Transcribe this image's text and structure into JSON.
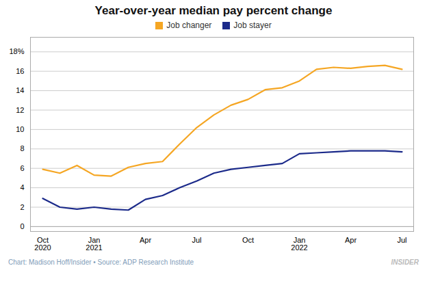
{
  "chart_data": {
    "type": "line",
    "title": "Year-over-year median pay percent change",
    "categories": [
      "Oct\n2020",
      null,
      null,
      "Jan\n2021",
      null,
      null,
      "Apr",
      null,
      null,
      "Jul",
      null,
      null,
      "Oct",
      null,
      null,
      "Jan\n2022",
      null,
      null,
      "Apr",
      null,
      null,
      "Jul"
    ],
    "series": [
      {
        "name": "Job changer",
        "color": "#F5A623",
        "values": [
          5.9,
          5.5,
          6.3,
          5.3,
          5.2,
          6.1,
          6.5,
          6.7,
          8.5,
          10.2,
          11.5,
          12.5,
          13.1,
          14.1,
          14.3,
          15.0,
          16.2,
          16.4,
          16.3,
          16.5,
          16.6,
          16.2
        ]
      },
      {
        "name": "Job stayer",
        "color": "#1B2A8A",
        "values": [
          2.9,
          2.0,
          1.8,
          2.0,
          1.8,
          1.7,
          2.8,
          3.2,
          4.0,
          4.7,
          5.5,
          5.9,
          6.1,
          6.3,
          6.5,
          7.5,
          7.6,
          7.7,
          7.8,
          7.8,
          7.8,
          7.7
        ]
      }
    ],
    "ylim": [
      -0.5,
      19.5
    ],
    "yticks": [
      0,
      2,
      4,
      6,
      8,
      10,
      12,
      14,
      16,
      {
        "value": 18,
        "label": "18%"
      }
    ],
    "grid": true,
    "legend": "top",
    "annotations": [
      "Chart: Madison Hoff/Insider  •  Source: ADP Research Institute",
      "INSIDER"
    ]
  }
}
